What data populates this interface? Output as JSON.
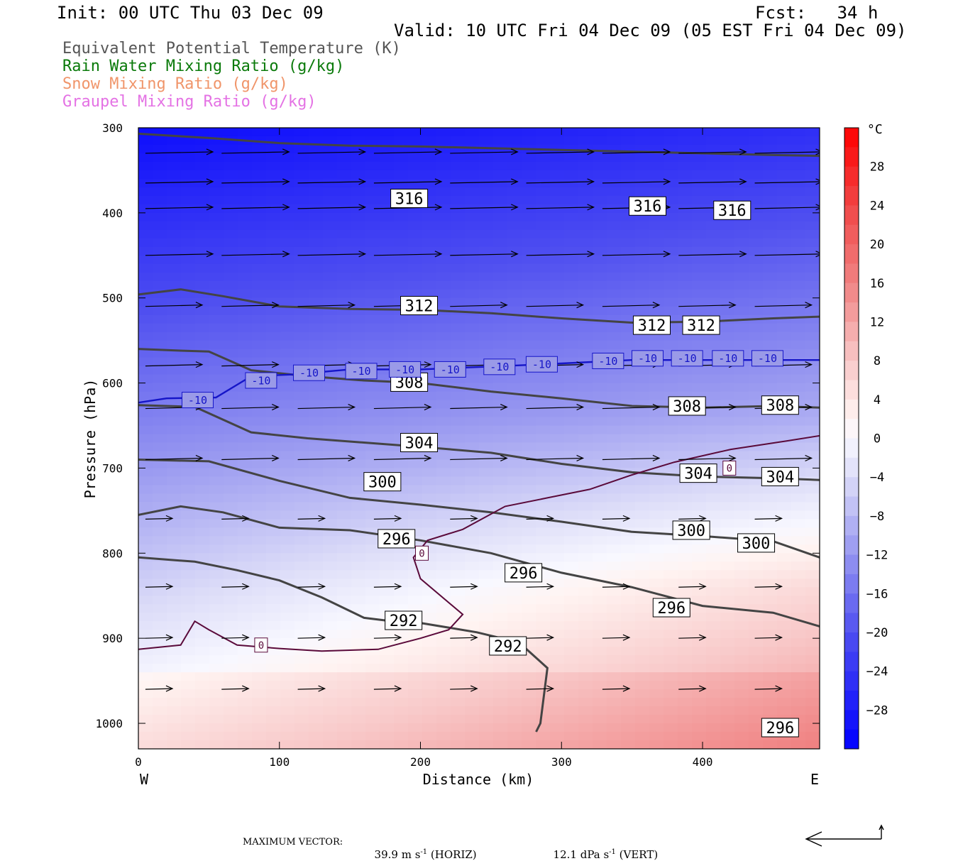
{
  "header": {
    "init": "Init: 00 UTC Thu 03 Dec 09",
    "fcst": "Fcst:   34 h",
    "valid": "Valid: 10 UTC Fri 04 Dec 09 (05 EST Fri 04 Dec 09)"
  },
  "legend": [
    {
      "label": "Equivalent Potential Temperature (K)",
      "color": "#555555"
    },
    {
      "label": "Rain Water Mixing Ratio (g/kg)",
      "color": "#0a7a0a"
    },
    {
      "label": "Snow Mixing Ratio (g/kg)",
      "color": "#f0956a"
    },
    {
      "label": "Graupel Mixing Ratio (g/kg)",
      "color": "#e472e4"
    }
  ],
  "chart_data": {
    "type": "cross-section",
    "xlabel": "Distance (km)",
    "ylabel": "Pressure (hPa)",
    "x_ticks": [
      0,
      100,
      200,
      300,
      400
    ],
    "x_range": [
      0,
      483
    ],
    "y_ticks": [
      300,
      400,
      500,
      600,
      700,
      800,
      900,
      1000
    ],
    "y_range": [
      300,
      1030
    ],
    "x_end_labels": {
      "left": "W",
      "right": "E"
    },
    "colorbar": {
      "unit": "°C",
      "ticks": [
        28,
        24,
        20,
        16,
        12,
        8,
        4,
        0,
        -4,
        -8,
        -12,
        -16,
        -20,
        -24,
        -28
      ],
      "range": [
        -32,
        32
      ]
    },
    "theta_e_contours": [
      {
        "value": 316,
        "points": [
          [
            0,
            307
          ],
          [
            50,
            312
          ],
          [
            100,
            318
          ],
          [
            150,
            321
          ],
          [
            200,
            322
          ],
          [
            250,
            324
          ],
          [
            300,
            326
          ],
          [
            350,
            328
          ],
          [
            400,
            330
          ],
          [
            450,
            332
          ],
          [
            483,
            333
          ]
        ]
      },
      {
        "value": 312,
        "points": [
          [
            0,
            496
          ],
          [
            30,
            490
          ],
          [
            60,
            498
          ],
          [
            100,
            510
          ],
          [
            150,
            513
          ],
          [
            200,
            514
          ],
          [
            250,
            518
          ],
          [
            300,
            524
          ],
          [
            350,
            529
          ],
          [
            400,
            528
          ],
          [
            450,
            524
          ],
          [
            483,
            522
          ]
        ]
      },
      {
        "value": 308,
        "points": [
          [
            0,
            560
          ],
          [
            30,
            562
          ],
          [
            50,
            563
          ],
          [
            80,
            585
          ],
          [
            120,
            592
          ],
          [
            160,
            597
          ],
          [
            200,
            600
          ],
          [
            250,
            610
          ],
          [
            300,
            618
          ],
          [
            350,
            627
          ],
          [
            400,
            629
          ],
          [
            450,
            627
          ],
          [
            483,
            629
          ]
        ]
      },
      {
        "value": 304,
        "points": [
          [
            0,
            626
          ],
          [
            40,
            628
          ],
          [
            80,
            658
          ],
          [
            120,
            665
          ],
          [
            160,
            670
          ],
          [
            200,
            675
          ],
          [
            250,
            682
          ],
          [
            300,
            695
          ],
          [
            350,
            705
          ],
          [
            400,
            710
          ],
          [
            450,
            712
          ],
          [
            483,
            714
          ]
        ]
      },
      {
        "value": 300,
        "points": [
          [
            0,
            690
          ],
          [
            50,
            692
          ],
          [
            100,
            715
          ],
          [
            150,
            735
          ],
          [
            200,
            743
          ],
          [
            250,
            752
          ],
          [
            300,
            763
          ],
          [
            350,
            775
          ],
          [
            400,
            780
          ],
          [
            450,
            786
          ],
          [
            483,
            805
          ]
        ]
      },
      {
        "value": 296,
        "points": [
          [
            0,
            755
          ],
          [
            30,
            745
          ],
          [
            60,
            752
          ],
          [
            100,
            770
          ],
          [
            150,
            773
          ],
          [
            200,
            785
          ],
          [
            250,
            800
          ],
          [
            300,
            823
          ],
          [
            350,
            840
          ],
          [
            400,
            862
          ],
          [
            450,
            870
          ],
          [
            483,
            886
          ]
        ]
      },
      {
        "value": 292,
        "points": [
          [
            0,
            805
          ],
          [
            40,
            810
          ],
          [
            70,
            820
          ],
          [
            100,
            832
          ],
          [
            130,
            852
          ],
          [
            160,
            876
          ],
          [
            180,
            880
          ],
          [
            200,
            882
          ],
          [
            240,
            893
          ],
          [
            270,
            905
          ],
          [
            290,
            935
          ],
          [
            285,
            1000
          ],
          [
            282,
            1010
          ]
        ]
      }
    ],
    "zero_isotherm": [
      [
        0,
        913
      ],
      [
        30,
        908
      ],
      [
        40,
        880
      ],
      [
        50,
        890
      ],
      [
        70,
        908
      ],
      [
        100,
        912
      ],
      [
        130,
        915
      ],
      [
        170,
        913
      ],
      [
        200,
        900
      ],
      [
        220,
        890
      ],
      [
        230,
        872
      ],
      [
        200,
        830
      ],
      [
        195,
        805
      ],
      [
        205,
        785
      ],
      [
        230,
        772
      ],
      [
        260,
        745
      ],
      [
        290,
        735
      ],
      [
        320,
        725
      ],
      [
        350,
        708
      ],
      [
        380,
        693
      ],
      [
        420,
        678
      ],
      [
        460,
        668
      ],
      [
        483,
        662
      ]
    ],
    "minus10_isotherm": [
      [
        0,
        623
      ],
      [
        20,
        618
      ],
      [
        55,
        617
      ],
      [
        80,
        592
      ],
      [
        110,
        590
      ],
      [
        150,
        584
      ],
      [
        200,
        584
      ],
      [
        260,
        580
      ],
      [
        300,
        577
      ],
      [
        350,
        573
      ],
      [
        400,
        573
      ],
      [
        483,
        573
      ]
    ],
    "contour_labels": [
      {
        "text": "316",
        "x": 192,
        "y": 383
      },
      {
        "text": "316",
        "x": 361,
        "y": 392
      },
      {
        "text": "316",
        "x": 421,
        "y": 397
      },
      {
        "text": "312",
        "x": 199,
        "y": 509
      },
      {
        "text": "312",
        "x": 364,
        "y": 532
      },
      {
        "text": "312",
        "x": 399,
        "y": 532
      },
      {
        "text": "308",
        "x": 192,
        "y": 599
      },
      {
        "text": "308",
        "x": 389,
        "y": 627
      },
      {
        "text": "308",
        "x": 455,
        "y": 626
      },
      {
        "text": "304",
        "x": 199,
        "y": 670
      },
      {
        "text": "304",
        "x": 397,
        "y": 706
      },
      {
        "text": "304",
        "x": 455,
        "y": 710
      },
      {
        "text": "300",
        "x": 173,
        "y": 716
      },
      {
        "text": "300",
        "x": 392,
        "y": 773
      },
      {
        "text": "300",
        "x": 438,
        "y": 788
      },
      {
        "text": "296",
        "x": 183,
        "y": 783
      },
      {
        "text": "296",
        "x": 273,
        "y": 823
      },
      {
        "text": "296",
        "x": 378,
        "y": 864
      },
      {
        "text": "296",
        "x": 455,
        "y": 1005
      },
      {
        "text": "292",
        "x": 188,
        "y": 879
      },
      {
        "text": "292",
        "x": 262,
        "y": 909
      }
    ],
    "minus10_labels": [
      {
        "text": "-10",
        "x": 42,
        "y": 620
      },
      {
        "text": "-10",
        "x": 87,
        "y": 597
      },
      {
        "text": "-10",
        "x": 121,
        "y": 588
      },
      {
        "text": "-10",
        "x": 158,
        "y": 586
      },
      {
        "text": "-10",
        "x": 189,
        "y": 584
      },
      {
        "text": "-10",
        "x": 221,
        "y": 584
      },
      {
        "text": "-10",
        "x": 256,
        "y": 581
      },
      {
        "text": "-10",
        "x": 286,
        "y": 578
      },
      {
        "text": "-10",
        "x": 333,
        "y": 574
      },
      {
        "text": "-10",
        "x": 361,
        "y": 571
      },
      {
        "text": "-10",
        "x": 389,
        "y": 571
      },
      {
        "text": "-10",
        "x": 418,
        "y": 571
      },
      {
        "text": "-10",
        "x": 446,
        "y": 571
      }
    ],
    "zero_labels": [
      {
        "text": "0",
        "x": 87,
        "y": 908
      },
      {
        "text": "0",
        "x": 201,
        "y": 800
      },
      {
        "text": "0",
        "x": 419,
        "y": 700
      }
    ]
  },
  "footer": {
    "label": "MAXIMUM VECTOR:",
    "horiz_value": "39.9 m s",
    "horiz_unit": " (HORIZ)",
    "vert_value": "12.1 dPa s",
    "vert_unit": " (VERT)",
    "exponent": "-1"
  }
}
